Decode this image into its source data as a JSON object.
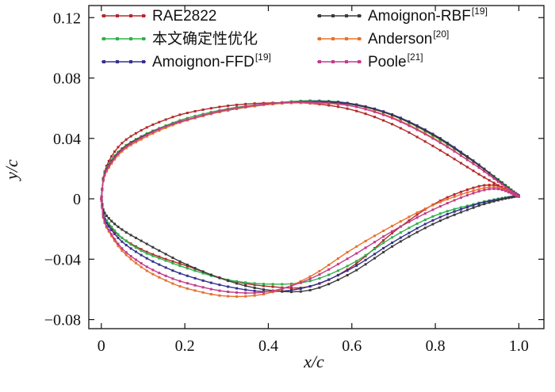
{
  "chart_data": {
    "type": "line",
    "title": "",
    "xlabel": "x/c",
    "ylabel": "y/c",
    "xlim": [
      -0.03,
      1.06
    ],
    "ylim": [
      -0.086,
      0.128
    ],
    "x_ticks": [
      0,
      0.2,
      0.4,
      0.6,
      0.8,
      1.0
    ],
    "x_tick_labels": [
      "0",
      "0.2",
      "0.4",
      "0.6",
      "0.8",
      "1.0"
    ],
    "y_ticks": [
      -0.08,
      -0.04,
      0,
      0.04,
      0.08,
      0.12
    ],
    "y_tick_labels": [
      "−0.08",
      "−0.04",
      "0",
      "0.04",
      "0.08",
      "0.12"
    ],
    "legend_position": "top",
    "series": [
      {
        "name": "RAE2822",
        "ref": "",
        "color": "#b5282a",
        "upper": [
          [
            0,
            0
          ],
          [
            0.005,
            0.0145
          ],
          [
            0.02,
            0.026
          ],
          [
            0.05,
            0.037
          ],
          [
            0.1,
            0.046
          ],
          [
            0.15,
            0.052
          ],
          [
            0.2,
            0.0565
          ],
          [
            0.3,
            0.0615
          ],
          [
            0.4,
            0.0635
          ],
          [
            0.5,
            0.0632
          ],
          [
            0.6,
            0.059
          ],
          [
            0.7,
            0.049
          ],
          [
            0.8,
            0.034
          ],
          [
            0.9,
            0.017
          ],
          [
            0.95,
            0.009
          ],
          [
            1.0,
            0.0015
          ]
        ],
        "lower": [
          [
            0,
            0
          ],
          [
            0.005,
            -0.0095
          ],
          [
            0.02,
            -0.018
          ],
          [
            0.05,
            -0.026
          ],
          [
            0.1,
            -0.034
          ],
          [
            0.15,
            -0.0395
          ],
          [
            0.2,
            -0.044
          ],
          [
            0.3,
            -0.0535
          ],
          [
            0.4,
            -0.058
          ],
          [
            0.5,
            -0.058
          ],
          [
            0.6,
            -0.045
          ],
          [
            0.7,
            -0.022
          ],
          [
            0.8,
            -0.003
          ],
          [
            0.9,
            0.008
          ],
          [
            0.95,
            0.0085
          ],
          [
            1.0,
            0.0015
          ]
        ]
      },
      {
        "name": "本文确定性优化",
        "ref": "",
        "color": "#2fb24a",
        "upper": [
          [
            0,
            0
          ],
          [
            0.005,
            0.014
          ],
          [
            0.02,
            0.024
          ],
          [
            0.05,
            0.0335
          ],
          [
            0.1,
            0.042
          ],
          [
            0.15,
            0.048
          ],
          [
            0.2,
            0.053
          ],
          [
            0.3,
            0.0595
          ],
          [
            0.4,
            0.063
          ],
          [
            0.5,
            0.065
          ],
          [
            0.6,
            0.063
          ],
          [
            0.7,
            0.055
          ],
          [
            0.8,
            0.041
          ],
          [
            0.9,
            0.023
          ],
          [
            0.95,
            0.013
          ],
          [
            1.0,
            0.002
          ]
        ],
        "lower": [
          [
            0,
            0
          ],
          [
            0.005,
            -0.01
          ],
          [
            0.02,
            -0.017
          ],
          [
            0.05,
            -0.026
          ],
          [
            0.1,
            -0.035
          ],
          [
            0.15,
            -0.0405
          ],
          [
            0.2,
            -0.0455
          ],
          [
            0.3,
            -0.0535
          ],
          [
            0.4,
            -0.0565
          ],
          [
            0.5,
            -0.0545
          ],
          [
            0.6,
            -0.043
          ],
          [
            0.7,
            -0.025
          ],
          [
            0.8,
            -0.011
          ],
          [
            0.9,
            -0.003
          ],
          [
            0.95,
            0.0
          ],
          [
            1.0,
            0.002
          ]
        ]
      },
      {
        "name": "Amoignon-FFD",
        "ref": "[19]",
        "color": "#35308f",
        "upper": [
          [
            0,
            0
          ],
          [
            0.005,
            0.013
          ],
          [
            0.02,
            0.0225
          ],
          [
            0.05,
            0.0325
          ],
          [
            0.1,
            0.041
          ],
          [
            0.15,
            0.0475
          ],
          [
            0.2,
            0.052
          ],
          [
            0.3,
            0.0585
          ],
          [
            0.4,
            0.0625
          ],
          [
            0.5,
            0.0645
          ],
          [
            0.6,
            0.063
          ],
          [
            0.7,
            0.0555
          ],
          [
            0.8,
            0.042
          ],
          [
            0.9,
            0.0235
          ],
          [
            0.95,
            0.0125
          ],
          [
            1.0,
            0.002
          ]
        ],
        "lower": [
          [
            0,
            0
          ],
          [
            0.005,
            -0.011
          ],
          [
            0.02,
            -0.019
          ],
          [
            0.05,
            -0.0285
          ],
          [
            0.1,
            -0.038
          ],
          [
            0.15,
            -0.045
          ],
          [
            0.2,
            -0.0505
          ],
          [
            0.3,
            -0.058
          ],
          [
            0.4,
            -0.0615
          ],
          [
            0.5,
            -0.058
          ],
          [
            0.6,
            -0.046
          ],
          [
            0.7,
            -0.0285
          ],
          [
            0.8,
            -0.0135
          ],
          [
            0.9,
            -0.0035
          ],
          [
            0.95,
            -0.0005
          ],
          [
            1.0,
            0.002
          ]
        ]
      },
      {
        "name": "Amoignon-RBF",
        "ref": "[19]",
        "color": "#3b3b3b",
        "upper": [
          [
            0,
            0
          ],
          [
            0.005,
            0.0135
          ],
          [
            0.02,
            0.023
          ],
          [
            0.05,
            0.033
          ],
          [
            0.1,
            0.0415
          ],
          [
            0.15,
            0.0475
          ],
          [
            0.2,
            0.052
          ],
          [
            0.3,
            0.0585
          ],
          [
            0.4,
            0.0625
          ],
          [
            0.5,
            0.064
          ],
          [
            0.6,
            0.0625
          ],
          [
            0.7,
            0.055
          ],
          [
            0.8,
            0.0415
          ],
          [
            0.9,
            0.023
          ],
          [
            0.95,
            0.0125
          ],
          [
            1.0,
            0.002
          ]
        ],
        "lower": [
          [
            0,
            0
          ],
          [
            0.005,
            -0.0075
          ],
          [
            0.02,
            -0.0135
          ],
          [
            0.05,
            -0.0205
          ],
          [
            0.1,
            -0.0285
          ],
          [
            0.15,
            -0.036
          ],
          [
            0.2,
            -0.043
          ],
          [
            0.3,
            -0.054
          ],
          [
            0.4,
            -0.0605
          ],
          [
            0.5,
            -0.0605
          ],
          [
            0.6,
            -0.049
          ],
          [
            0.7,
            -0.031
          ],
          [
            0.8,
            -0.016
          ],
          [
            0.9,
            -0.005
          ],
          [
            0.95,
            -0.001
          ],
          [
            1.0,
            0.002
          ]
        ]
      },
      {
        "name": "Anderson",
        "ref": "[20]",
        "color": "#e8722b",
        "upper": [
          [
            0,
            0
          ],
          [
            0.005,
            0.0125
          ],
          [
            0.02,
            0.0215
          ],
          [
            0.05,
            0.0315
          ],
          [
            0.1,
            0.04
          ],
          [
            0.15,
            0.0465
          ],
          [
            0.2,
            0.0515
          ],
          [
            0.3,
            0.0585
          ],
          [
            0.4,
            0.0625
          ],
          [
            0.5,
            0.0635
          ],
          [
            0.6,
            0.0615
          ],
          [
            0.7,
            0.0535
          ],
          [
            0.8,
            0.0395
          ],
          [
            0.9,
            0.0215
          ],
          [
            0.95,
            0.0115
          ],
          [
            1.0,
            0.0015
          ]
        ],
        "lower": [
          [
            0,
            0
          ],
          [
            0.005,
            -0.013
          ],
          [
            0.02,
            -0.0225
          ],
          [
            0.05,
            -0.0345
          ],
          [
            0.1,
            -0.046
          ],
          [
            0.15,
            -0.0535
          ],
          [
            0.2,
            -0.059
          ],
          [
            0.3,
            -0.0645
          ],
          [
            0.4,
            -0.0625
          ],
          [
            0.5,
            -0.0515
          ],
          [
            0.6,
            -0.0335
          ],
          [
            0.7,
            -0.0175
          ],
          [
            0.8,
            -0.0035
          ],
          [
            0.9,
            0.006
          ],
          [
            0.95,
            0.0075
          ],
          [
            1.0,
            0.0015
          ]
        ]
      },
      {
        "name": "Poole",
        "ref": "[21]",
        "color": "#c23b8c",
        "upper": [
          [
            0,
            0
          ],
          [
            0.005,
            0.013
          ],
          [
            0.02,
            0.0225
          ],
          [
            0.05,
            0.0325
          ],
          [
            0.1,
            0.041
          ],
          [
            0.15,
            0.0475
          ],
          [
            0.2,
            0.052
          ],
          [
            0.3,
            0.059
          ],
          [
            0.4,
            0.063
          ],
          [
            0.5,
            0.064
          ],
          [
            0.6,
            0.0615
          ],
          [
            0.7,
            0.053
          ],
          [
            0.8,
            0.039
          ],
          [
            0.9,
            0.0215
          ],
          [
            0.95,
            0.0115
          ],
          [
            1.0,
            0.0015
          ]
        ],
        "lower": [
          [
            0,
            0
          ],
          [
            0.005,
            -0.0125
          ],
          [
            0.02,
            -0.0215
          ],
          [
            0.05,
            -0.033
          ],
          [
            0.1,
            -0.0435
          ],
          [
            0.15,
            -0.0505
          ],
          [
            0.2,
            -0.0555
          ],
          [
            0.3,
            -0.0615
          ],
          [
            0.4,
            -0.0615
          ],
          [
            0.5,
            -0.053
          ],
          [
            0.6,
            -0.038
          ],
          [
            0.7,
            -0.021
          ],
          [
            0.8,
            -0.0065
          ],
          [
            0.9,
            0.0045
          ],
          [
            0.95,
            0.0065
          ],
          [
            1.0,
            0.0015
          ]
        ]
      }
    ]
  }
}
